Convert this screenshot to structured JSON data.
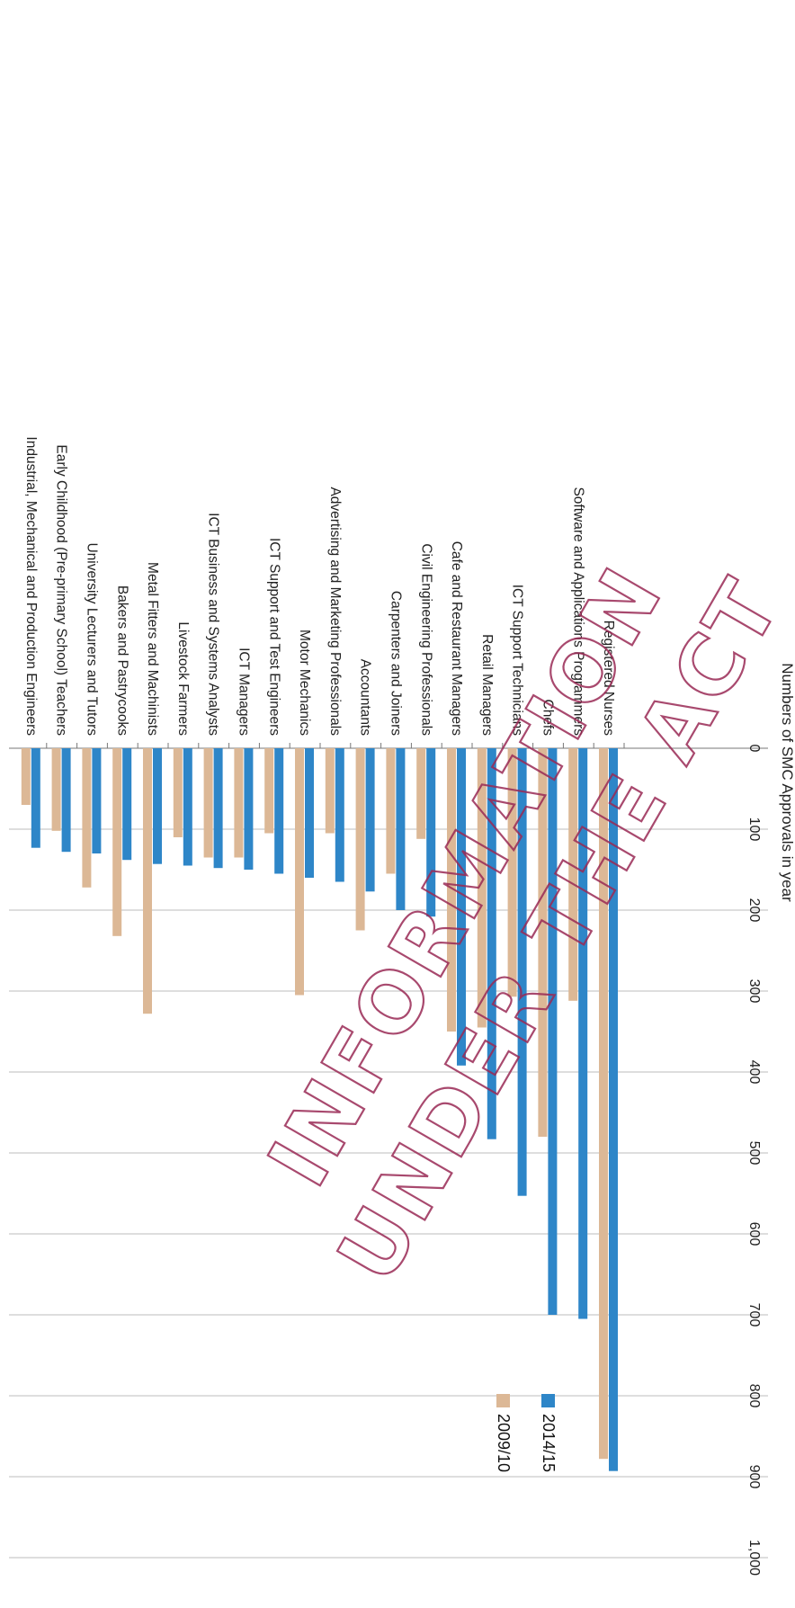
{
  "chart_data": {
    "type": "bar",
    "orientation": "horizontal",
    "xlabel": "Numbers of SMC Approvals in year",
    "xlim": [
      0,
      1000
    ],
    "ticks": [
      "0",
      "100",
      "200",
      "300",
      "400",
      "500",
      "600",
      "700",
      "800",
      "900",
      "1,000"
    ],
    "grid": true,
    "legend_position": "right",
    "categories": [
      "Registered Nurses",
      "Software and Applications Programmers",
      "Chefs",
      "ICT Support Technicians",
      "Retail Managers",
      "Cafe and Restaurant Managers",
      "Civil Engineering Professionals",
      "Carpenters and Joiners",
      "Accountants",
      "Advertising and Marketing Professionals",
      "Motor Mechanics",
      "ICT Support and Test Engineers",
      "ICT Managers",
      "ICT Business and Systems Analysts",
      "Livestock Farmers",
      "Metal Fitters and Machinists",
      "Bakers and Pastrycooks",
      "University Lecturers and Tutors",
      "Early Childhood (Pre-primary School) Teachers",
      "Industrial, Mechanical and Production Engineers"
    ],
    "series": [
      {
        "name": "2014/15",
        "color": "#2e86c8",
        "values": [
          893,
          705,
          700,
          553,
          483,
          392,
          208,
          200,
          177,
          165,
          160,
          155,
          150,
          148,
          145,
          143,
          138,
          130,
          128,
          123
        ]
      },
      {
        "name": "2009/10",
        "color": "#dcb896",
        "values": [
          878,
          312,
          480,
          307,
          345,
          350,
          112,
          155,
          225,
          105,
          305,
          105,
          135,
          135,
          110,
          328,
          232,
          172,
          102,
          70
        ]
      }
    ]
  },
  "watermark": {
    "lines": [
      "INFORMATION",
      "UNDER THE ACT"
    ]
  }
}
